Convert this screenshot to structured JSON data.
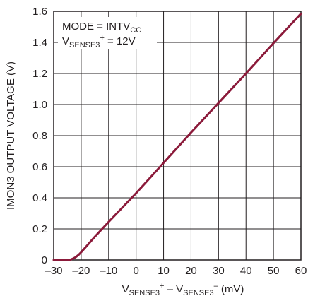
{
  "chart_data": {
    "type": "line",
    "title": "",
    "ylabel": "IMON3 OUTPUT VOLTAGE (V)",
    "xlabel": {
      "parts": [
        {
          "text": "V",
          "style": "normal"
        },
        {
          "text": "SENSE3",
          "style": "sub"
        },
        {
          "text": "+",
          "style": "sup"
        },
        {
          "text": " – V",
          "style": "normal"
        },
        {
          "text": "SENSE3",
          "style": "sub"
        },
        {
          "text": "–",
          "style": "sup"
        },
        {
          "text": " (mV)",
          "style": "normal"
        }
      ]
    },
    "xlim": [
      -30,
      60
    ],
    "ylim": [
      0,
      1.6
    ],
    "x_ticks": [
      "–30",
      "–20",
      "–10",
      "0",
      "10",
      "20",
      "30",
      "40",
      "50",
      "60"
    ],
    "y_ticks": [
      "0",
      "0.2",
      "0.4",
      "0.6",
      "0.8",
      "1.0",
      "1.2",
      "1.4",
      "1.6"
    ],
    "grid": true,
    "line_color": "#8b1a3a",
    "annotation": {
      "line1": [
        {
          "text": "MODE = INTV",
          "style": "normal"
        },
        {
          "text": "CC",
          "style": "sub"
        }
      ],
      "line2": [
        {
          "text": "V",
          "style": "normal"
        },
        {
          "text": "SENSE3",
          "style": "sub"
        },
        {
          "text": "+",
          "style": "sup"
        },
        {
          "text": " = 12V",
          "style": "normal"
        }
      ]
    },
    "series": [
      {
        "x": [
          -30,
          -26,
          -24,
          -23,
          -22,
          -21,
          -20,
          -18,
          -15,
          -10,
          0,
          10,
          20,
          30,
          40,
          50,
          60
        ],
        "y": [
          0.0,
          0.0,
          0.002,
          0.008,
          0.018,
          0.032,
          0.05,
          0.09,
          0.15,
          0.245,
          0.43,
          0.625,
          0.82,
          1.01,
          1.2,
          1.395,
          1.585
        ]
      }
    ]
  }
}
